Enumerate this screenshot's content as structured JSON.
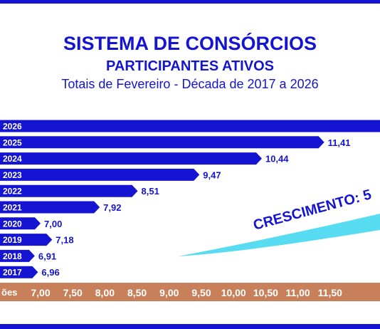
{
  "header": {
    "title": "SISTEMA DE CONSÓRCIOS",
    "subtitle": "PARTICIPANTES ATIVOS",
    "caption": "Totais de Fevereiro - Década de 2017 a 2026"
  },
  "annotation": {
    "text": "CRESCIMENTO: 5"
  },
  "colors": {
    "frame": "#1414d2",
    "bar": "#1414d2",
    "value_text": "#1414d2",
    "axis_band": "#c8805a",
    "axis_text": "#ffffff",
    "ribbon": "#39d6ee",
    "annotation_text": "#1414d2"
  },
  "chart_data": {
    "type": "bar",
    "orientation": "horizontal",
    "categories": [
      "2026",
      "2025",
      "2024",
      "2023",
      "2022",
      "2021",
      "2020",
      "2019",
      "2018",
      "2017"
    ],
    "values": [
      null,
      11.41,
      10.44,
      9.47,
      8.51,
      7.92,
      7.0,
      7.18,
      6.91,
      6.96
    ],
    "value_labels": [
      "",
      "11,41",
      "10,44",
      "9,47",
      "8,51",
      "7,92",
      "7,00",
      "7,18",
      "6,91",
      "6,96"
    ],
    "x_axis_title": "ões",
    "x_ticks": [
      7.0,
      7.5,
      8.0,
      8.5,
      9.0,
      9.5,
      10.0,
      10.5,
      11.0,
      11.5
    ],
    "x_tick_labels": [
      "7,00",
      "7,50",
      "8,00",
      "8,50",
      "9,00",
      "9,50",
      "10,00",
      "10,50",
      "11,00",
      "11,50"
    ],
    "grid": false,
    "legend": "none"
  }
}
